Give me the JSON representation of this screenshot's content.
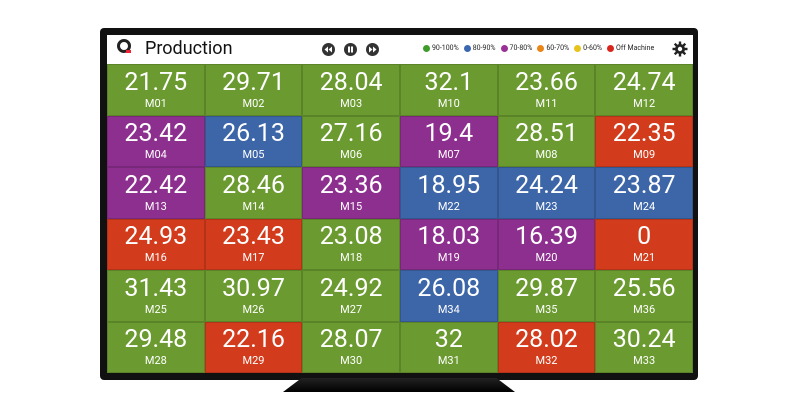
{
  "header": {
    "title": "Production"
  },
  "legend": [
    {
      "label": "90-100%",
      "color": "#3f9b2a"
    },
    {
      "label": "80-90%",
      "color": "#3a67b0"
    },
    {
      "label": "70-80%",
      "color": "#9a2f95"
    },
    {
      "label": "60-70%",
      "color": "#e8861a"
    },
    {
      "label": "0-60%",
      "color": "#e6c21a"
    },
    {
      "label": "Off Machine",
      "color": "#d8261c"
    }
  ],
  "tiles": [
    {
      "value": 21.75,
      "machine": "M01",
      "color": "#6b9a30"
    },
    {
      "value": 29.71,
      "machine": "M02",
      "color": "#6b9a30"
    },
    {
      "value": 28.04,
      "machine": "M03",
      "color": "#6b9a30"
    },
    {
      "value": 32.1,
      "machine": "M10",
      "color": "#6b9a30"
    },
    {
      "value": 23.66,
      "machine": "M11",
      "color": "#6b9a30"
    },
    {
      "value": 24.74,
      "machine": "M12",
      "color": "#6b9a30"
    },
    {
      "value": 23.42,
      "machine": "M04",
      "color": "#8d2f8e"
    },
    {
      "value": 26.13,
      "machine": "M05",
      "color": "#3d66a8"
    },
    {
      "value": 27.16,
      "machine": "M06",
      "color": "#6b9a30"
    },
    {
      "value": 19.4,
      "machine": "M07",
      "color": "#8d2f8e"
    },
    {
      "value": 28.51,
      "machine": "M08",
      "color": "#6b9a30"
    },
    {
      "value": 22.35,
      "machine": "M09",
      "color": "#d23c1c"
    },
    {
      "value": 22.42,
      "machine": "M13",
      "color": "#8d2f8e"
    },
    {
      "value": 28.46,
      "machine": "M14",
      "color": "#6b9a30"
    },
    {
      "value": 23.36,
      "machine": "M15",
      "color": "#8d2f8e"
    },
    {
      "value": 18.95,
      "machine": "M22",
      "color": "#3d66a8"
    },
    {
      "value": 24.24,
      "machine": "M23",
      "color": "#3d66a8"
    },
    {
      "value": 23.87,
      "machine": "M24",
      "color": "#3d66a8"
    },
    {
      "value": 24.93,
      "machine": "M16",
      "color": "#d23c1c"
    },
    {
      "value": 23.43,
      "machine": "M17",
      "color": "#d23c1c"
    },
    {
      "value": 23.08,
      "machine": "M18",
      "color": "#6b9a30"
    },
    {
      "value": 18.03,
      "machine": "M19",
      "color": "#8d2f8e"
    },
    {
      "value": 16.39,
      "machine": "M20",
      "color": "#8d2f8e"
    },
    {
      "value": 0,
      "machine": "M21",
      "color": "#d23c1c"
    },
    {
      "value": 31.43,
      "machine": "M25",
      "color": "#6b9a30"
    },
    {
      "value": 30.97,
      "machine": "M26",
      "color": "#6b9a30"
    },
    {
      "value": 24.92,
      "machine": "M27",
      "color": "#6b9a30"
    },
    {
      "value": 26.08,
      "machine": "M34",
      "color": "#3d66a8"
    },
    {
      "value": 29.87,
      "machine": "M35",
      "color": "#6b9a30"
    },
    {
      "value": 25.56,
      "machine": "M36",
      "color": "#6b9a30"
    },
    {
      "value": 29.48,
      "machine": "M28",
      "color": "#6b9a30"
    },
    {
      "value": 22.16,
      "machine": "M29",
      "color": "#d23c1c"
    },
    {
      "value": 28.07,
      "machine": "M30",
      "color": "#6b9a30"
    },
    {
      "value": 32,
      "machine": "M31",
      "color": "#6b9a30"
    },
    {
      "value": 28.02,
      "machine": "M32",
      "color": "#d23c1c"
    },
    {
      "value": 30.24,
      "machine": "M33",
      "color": "#6b9a30"
    }
  ]
}
